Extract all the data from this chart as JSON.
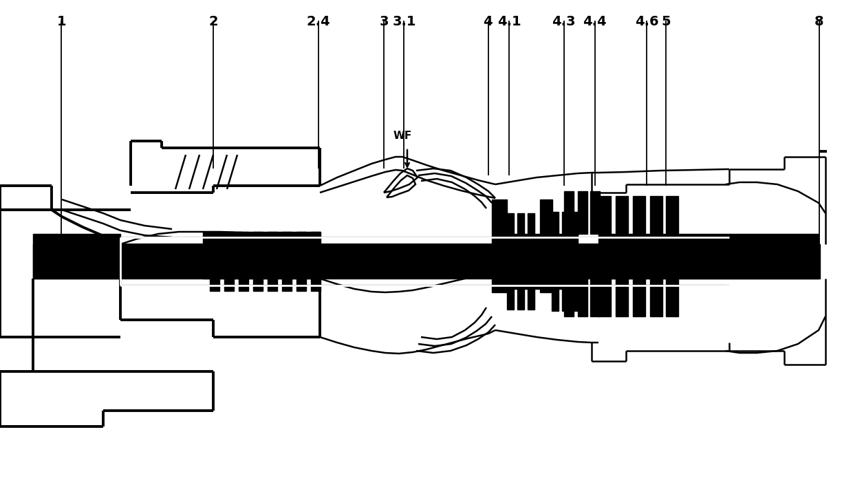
{
  "bg": "#ffffff",
  "lc": "#000000",
  "lw": 1.8,
  "lwt": 2.8,
  "figsize": [
    12.4,
    7.08
  ],
  "dpi": 100,
  "labels": [
    {
      "text": "1",
      "fx": 0.072
    },
    {
      "text": "2",
      "fx": 0.25
    },
    {
      "text": "2.4",
      "fx": 0.373
    },
    {
      "text": "3",
      "fx": 0.45
    },
    {
      "text": "3.1",
      "fx": 0.474
    },
    {
      "text": "4",
      "fx": 0.572
    },
    {
      "text": "4.1",
      "fx": 0.597
    },
    {
      "text": "4.3",
      "fx": 0.661
    },
    {
      "text": "4.4",
      "fx": 0.697
    },
    {
      "text": "4.6",
      "fx": 0.758
    },
    {
      "text": "5",
      "fx": 0.781
    },
    {
      "text": "8",
      "fx": 0.96
    }
  ]
}
